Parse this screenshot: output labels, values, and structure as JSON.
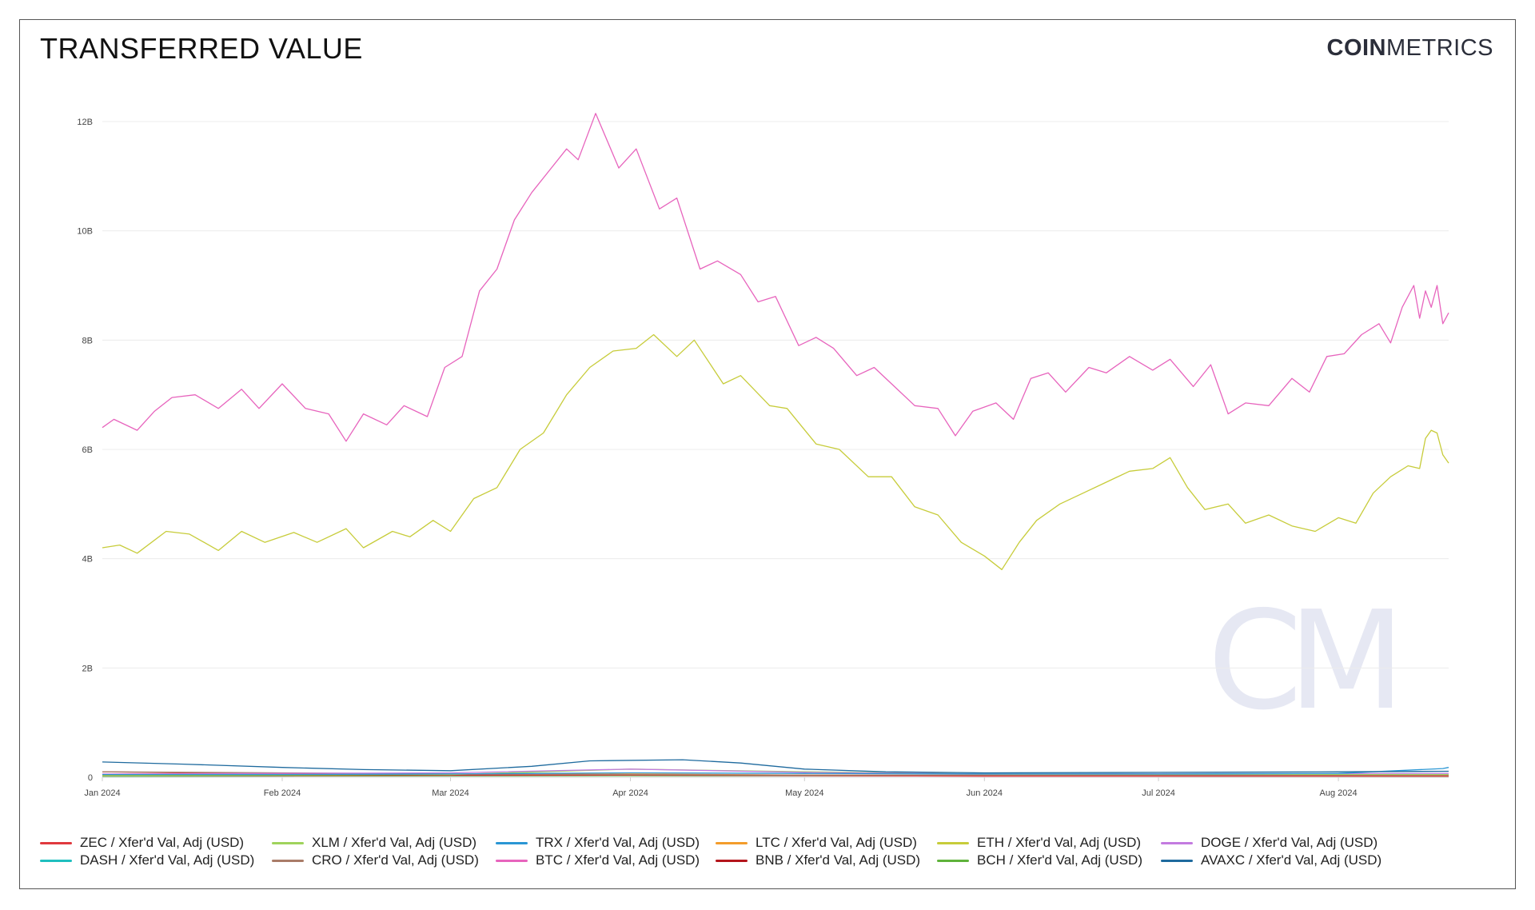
{
  "header": {
    "title": "TRANSFERRED VALUE",
    "logo_bold": "COIN",
    "logo_light": "METRICS",
    "watermark": "CM"
  },
  "chart_data": {
    "type": "line",
    "title": "TRANSFERRED VALUE",
    "xlabel": "",
    "ylabel": "",
    "x_ticks": [
      "Jan 2024",
      "Feb 2024",
      "Mar 2024",
      "Apr 2024",
      "May 2024",
      "Jun 2024",
      "Jul 2024",
      "Aug 2024"
    ],
    "y_ticks": [
      "0",
      "2B",
      "4B",
      "6B",
      "8B",
      "10B",
      "12B"
    ],
    "ylim": [
      0,
      12000000000
    ],
    "xlim": [
      "2024-01-01",
      "2024-08-20"
    ],
    "grid": "horizontal",
    "legend_position": "bottom",
    "series": [
      {
        "name": "ZEC / Xfer'd Val, Adj (USD)",
        "color": "#e0393e",
        "points": [
          [
            "2024-01-01",
            100000000
          ],
          [
            "2024-02-01",
            60000000
          ],
          [
            "2024-03-01",
            40000000
          ],
          [
            "2024-04-01",
            40000000
          ],
          [
            "2024-05-01",
            30000000
          ],
          [
            "2024-06-01",
            20000000
          ],
          [
            "2024-07-01",
            20000000
          ],
          [
            "2024-08-01",
            20000000
          ],
          [
            "2024-08-20",
            20000000
          ]
        ]
      },
      {
        "name": "XLM / Xfer'd Val, Adj (USD)",
        "color": "#9fd35c",
        "points": [
          [
            "2024-01-01",
            30000000
          ],
          [
            "2024-03-01",
            50000000
          ],
          [
            "2024-04-01",
            150000000
          ],
          [
            "2024-05-01",
            100000000
          ],
          [
            "2024-06-01",
            60000000
          ],
          [
            "2024-08-20",
            50000000
          ]
        ]
      },
      {
        "name": "TRX / Xfer'd Val, Adj (USD)",
        "color": "#2a96d4",
        "points": [
          [
            "2024-01-01",
            50000000
          ],
          [
            "2024-02-01",
            50000000
          ],
          [
            "2024-03-01",
            60000000
          ],
          [
            "2024-04-01",
            80000000
          ],
          [
            "2024-05-01",
            70000000
          ],
          [
            "2024-06-01",
            60000000
          ],
          [
            "2024-07-01",
            60000000
          ],
          [
            "2024-08-01",
            70000000
          ],
          [
            "2024-08-19",
            160000000
          ],
          [
            "2024-08-20",
            180000000
          ]
        ]
      },
      {
        "name": "LTC / Xfer'd Val, Adj (USD)",
        "color": "#f39c2b",
        "points": [
          [
            "2024-01-01",
            40000000
          ],
          [
            "2024-03-01",
            50000000
          ],
          [
            "2024-04-01",
            60000000
          ],
          [
            "2024-05-01",
            40000000
          ],
          [
            "2024-06-01",
            30000000
          ],
          [
            "2024-08-20",
            30000000
          ]
        ]
      },
      {
        "name": "ETH / Xfer'd Val, Adj (USD)",
        "color": "#c7cc3a",
        "points": [
          [
            "2024-01-01",
            4200000000
          ],
          [
            "2024-01-04",
            4250000000
          ],
          [
            "2024-01-07",
            4100000000
          ],
          [
            "2024-01-12",
            4500000000
          ],
          [
            "2024-01-16",
            4450000000
          ],
          [
            "2024-01-21",
            4150000000
          ],
          [
            "2024-01-25",
            4500000000
          ],
          [
            "2024-01-29",
            4300000000
          ],
          [
            "2024-02-03",
            4480000000
          ],
          [
            "2024-02-07",
            4300000000
          ],
          [
            "2024-02-12",
            4550000000
          ],
          [
            "2024-02-15",
            4200000000
          ],
          [
            "2024-02-20",
            4500000000
          ],
          [
            "2024-02-23",
            4400000000
          ],
          [
            "2024-02-27",
            4700000000
          ],
          [
            "2024-03-01",
            4500000000
          ],
          [
            "2024-03-05",
            5100000000
          ],
          [
            "2024-03-09",
            5300000000
          ],
          [
            "2024-03-13",
            6000000000
          ],
          [
            "2024-03-17",
            6300000000
          ],
          [
            "2024-03-21",
            7000000000
          ],
          [
            "2024-03-25",
            7500000000
          ],
          [
            "2024-03-29",
            7800000000
          ],
          [
            "2024-04-02",
            7850000000
          ],
          [
            "2024-04-05",
            8100000000
          ],
          [
            "2024-04-09",
            7700000000
          ],
          [
            "2024-04-12",
            8000000000
          ],
          [
            "2024-04-17",
            7200000000
          ],
          [
            "2024-04-20",
            7350000000
          ],
          [
            "2024-04-25",
            6800000000
          ],
          [
            "2024-04-28",
            6750000000
          ],
          [
            "2024-05-03",
            6100000000
          ],
          [
            "2024-05-07",
            6000000000
          ],
          [
            "2024-05-12",
            5500000000
          ],
          [
            "2024-05-16",
            5500000000
          ],
          [
            "2024-05-20",
            4950000000
          ],
          [
            "2024-05-24",
            4800000000
          ],
          [
            "2024-05-28",
            4300000000
          ],
          [
            "2024-06-01",
            4050000000
          ],
          [
            "2024-06-04",
            3800000000
          ],
          [
            "2024-06-07",
            4300000000
          ],
          [
            "2024-06-10",
            4700000000
          ],
          [
            "2024-06-14",
            5000000000
          ],
          [
            "2024-06-18",
            5200000000
          ],
          [
            "2024-06-22",
            5400000000
          ],
          [
            "2024-06-26",
            5600000000
          ],
          [
            "2024-06-30",
            5650000000
          ],
          [
            "2024-07-03",
            5850000000
          ],
          [
            "2024-07-06",
            5300000000
          ],
          [
            "2024-07-09",
            4900000000
          ],
          [
            "2024-07-13",
            5000000000
          ],
          [
            "2024-07-16",
            4650000000
          ],
          [
            "2024-07-20",
            4800000000
          ],
          [
            "2024-07-24",
            4600000000
          ],
          [
            "2024-07-28",
            4500000000
          ],
          [
            "2024-08-01",
            4750000000
          ],
          [
            "2024-08-04",
            4650000000
          ],
          [
            "2024-08-07",
            5200000000
          ],
          [
            "2024-08-10",
            5500000000
          ],
          [
            "2024-08-13",
            5700000000
          ],
          [
            "2024-08-15",
            5650000000
          ],
          [
            "2024-08-16",
            6200000000
          ],
          [
            "2024-08-17",
            6350000000
          ],
          [
            "2024-08-18",
            6300000000
          ],
          [
            "2024-08-19",
            5900000000
          ],
          [
            "2024-08-20",
            5750000000
          ]
        ]
      },
      {
        "name": "DOGE / Xfer'd Val, Adj (USD)",
        "color": "#c37be0",
        "points": [
          [
            "2024-01-01",
            60000000
          ],
          [
            "2024-03-01",
            80000000
          ],
          [
            "2024-04-01",
            150000000
          ],
          [
            "2024-05-01",
            90000000
          ],
          [
            "2024-06-01",
            60000000
          ],
          [
            "2024-08-20",
            70000000
          ]
        ]
      },
      {
        "name": "DASH / Xfer'd Val, Adj (USD)",
        "color": "#1fbfbf",
        "points": [
          [
            "2024-01-01",
            20000000
          ],
          [
            "2024-04-01",
            30000000
          ],
          [
            "2024-08-20",
            20000000
          ]
        ]
      },
      {
        "name": "CRO / Xfer'd Val, Adj (USD)",
        "color": "#a97c68",
        "points": [
          [
            "2024-01-01",
            100000000
          ],
          [
            "2024-02-01",
            80000000
          ],
          [
            "2024-03-01",
            60000000
          ],
          [
            "2024-04-01",
            50000000
          ],
          [
            "2024-05-01",
            40000000
          ],
          [
            "2024-06-01",
            40000000
          ],
          [
            "2024-08-20",
            40000000
          ]
        ]
      },
      {
        "name": "BTC / Xfer'd Val, Adj (USD)",
        "color": "#e764bd",
        "points": [
          [
            "2024-01-01",
            6400000000
          ],
          [
            "2024-01-03",
            6550000000
          ],
          [
            "2024-01-07",
            6350000000
          ],
          [
            "2024-01-10",
            6700000000
          ],
          [
            "2024-01-13",
            6950000000
          ],
          [
            "2024-01-17",
            7000000000
          ],
          [
            "2024-01-21",
            6750000000
          ],
          [
            "2024-01-25",
            7100000000
          ],
          [
            "2024-01-28",
            6750000000
          ],
          [
            "2024-02-01",
            7200000000
          ],
          [
            "2024-02-05",
            6750000000
          ],
          [
            "2024-02-09",
            6650000000
          ],
          [
            "2024-02-12",
            6150000000
          ],
          [
            "2024-02-15",
            6650000000
          ],
          [
            "2024-02-19",
            6450000000
          ],
          [
            "2024-02-22",
            6800000000
          ],
          [
            "2024-02-26",
            6600000000
          ],
          [
            "2024-02-29",
            7500000000
          ],
          [
            "2024-03-03",
            7700000000
          ],
          [
            "2024-03-06",
            8900000000
          ],
          [
            "2024-03-09",
            9300000000
          ],
          [
            "2024-03-12",
            10200000000
          ],
          [
            "2024-03-15",
            10700000000
          ],
          [
            "2024-03-18",
            11100000000
          ],
          [
            "2024-03-21",
            11500000000
          ],
          [
            "2024-03-23",
            11300000000
          ],
          [
            "2024-03-26",
            12150000000
          ],
          [
            "2024-03-30",
            11150000000
          ],
          [
            "2024-04-02",
            11500000000
          ],
          [
            "2024-04-06",
            10400000000
          ],
          [
            "2024-04-09",
            10600000000
          ],
          [
            "2024-04-13",
            9300000000
          ],
          [
            "2024-04-16",
            9450000000
          ],
          [
            "2024-04-20",
            9200000000
          ],
          [
            "2024-04-23",
            8700000000
          ],
          [
            "2024-04-26",
            8800000000
          ],
          [
            "2024-04-30",
            7900000000
          ],
          [
            "2024-05-03",
            8050000000
          ],
          [
            "2024-05-06",
            7850000000
          ],
          [
            "2024-05-10",
            7350000000
          ],
          [
            "2024-05-13",
            7500000000
          ],
          [
            "2024-05-16",
            7200000000
          ],
          [
            "2024-05-20",
            6800000000
          ],
          [
            "2024-05-24",
            6750000000
          ],
          [
            "2024-05-27",
            6250000000
          ],
          [
            "2024-05-30",
            6700000000
          ],
          [
            "2024-06-03",
            6850000000
          ],
          [
            "2024-06-06",
            6550000000
          ],
          [
            "2024-06-09",
            7300000000
          ],
          [
            "2024-06-12",
            7400000000
          ],
          [
            "2024-06-15",
            7050000000
          ],
          [
            "2024-06-19",
            7500000000
          ],
          [
            "2024-06-22",
            7400000000
          ],
          [
            "2024-06-26",
            7700000000
          ],
          [
            "2024-06-30",
            7450000000
          ],
          [
            "2024-07-03",
            7650000000
          ],
          [
            "2024-07-07",
            7150000000
          ],
          [
            "2024-07-10",
            7550000000
          ],
          [
            "2024-07-13",
            6650000000
          ],
          [
            "2024-07-16",
            6850000000
          ],
          [
            "2024-07-20",
            6800000000
          ],
          [
            "2024-07-24",
            7300000000
          ],
          [
            "2024-07-27",
            7050000000
          ],
          [
            "2024-07-30",
            7700000000
          ],
          [
            "2024-08-02",
            7750000000
          ],
          [
            "2024-08-05",
            8100000000
          ],
          [
            "2024-08-08",
            8300000000
          ],
          [
            "2024-08-10",
            7950000000
          ],
          [
            "2024-08-12",
            8600000000
          ],
          [
            "2024-08-14",
            9000000000
          ],
          [
            "2024-08-15",
            8400000000
          ],
          [
            "2024-08-16",
            8900000000
          ],
          [
            "2024-08-17",
            8600000000
          ],
          [
            "2024-08-18",
            9000000000
          ],
          [
            "2024-08-19",
            8300000000
          ],
          [
            "2024-08-20",
            8500000000
          ]
        ]
      },
      {
        "name": "BNB / Xfer'd Val, Adj (USD)",
        "color": "#b4151c",
        "points": [
          [
            "2024-01-01",
            30000000
          ],
          [
            "2024-04-01",
            40000000
          ],
          [
            "2024-08-20",
            30000000
          ]
        ]
      },
      {
        "name": "BCH / Xfer'd Val, Adj (USD)",
        "color": "#5fb33b",
        "points": [
          [
            "2024-01-01",
            20000000
          ],
          [
            "2024-04-01",
            30000000
          ],
          [
            "2024-08-20",
            20000000
          ]
        ]
      },
      {
        "name": "AVAXC / Xfer'd Val, Adj (USD)",
        "color": "#1e6a9e",
        "points": [
          [
            "2024-01-01",
            280000000
          ],
          [
            "2024-01-15",
            240000000
          ],
          [
            "2024-02-01",
            180000000
          ],
          [
            "2024-02-15",
            140000000
          ],
          [
            "2024-03-01",
            120000000
          ],
          [
            "2024-03-15",
            200000000
          ],
          [
            "2024-03-25",
            300000000
          ],
          [
            "2024-04-10",
            320000000
          ],
          [
            "2024-04-20",
            260000000
          ],
          [
            "2024-05-01",
            150000000
          ],
          [
            "2024-05-15",
            100000000
          ],
          [
            "2024-06-01",
            80000000
          ],
          [
            "2024-07-01",
            90000000
          ],
          [
            "2024-08-01",
            100000000
          ],
          [
            "2024-08-20",
            110000000
          ]
        ]
      }
    ]
  }
}
